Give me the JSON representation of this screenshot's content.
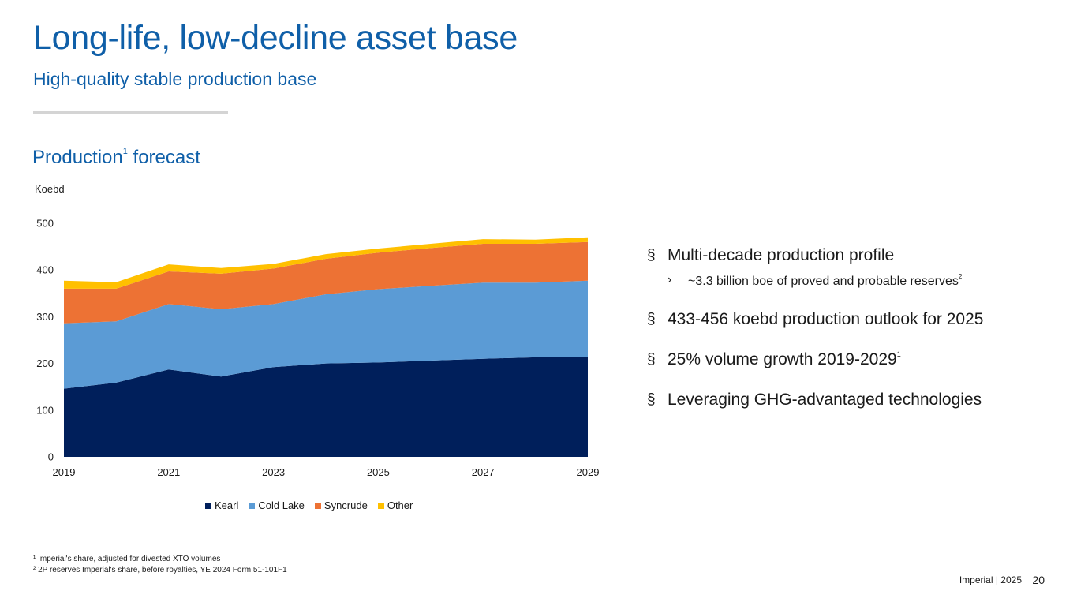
{
  "header": {
    "title": "Long-life, low-decline asset base",
    "subtitle": "High-quality stable production base"
  },
  "chart_section": {
    "title": "Production",
    "title_sup": "1",
    "title_suffix": " forecast",
    "unit_label": "Koebd"
  },
  "chart_data": {
    "type": "area",
    "stacked": true,
    "x": [
      2019,
      2020,
      2021,
      2022,
      2023,
      2024,
      2025,
      2026,
      2027,
      2028,
      2029
    ],
    "x_tick_labels": [
      "2019",
      "2021",
      "2023",
      "2025",
      "2027",
      "2029"
    ],
    "ylim": [
      0,
      500
    ],
    "y_ticks": [
      0,
      100,
      200,
      300,
      400,
      500
    ],
    "ylabel": "Koebd",
    "grid": false,
    "legend_position": "bottom",
    "series": [
      {
        "name": "Kearl",
        "color": "#001f5b",
        "values": [
          146,
          159,
          187,
          172,
          192,
          200,
          202,
          206,
          210,
          213,
          213
        ]
      },
      {
        "name": "Cold Lake",
        "color": "#5b9bd5",
        "values": [
          140,
          131,
          140,
          144,
          135,
          148,
          157,
          160,
          163,
          160,
          164
        ]
      },
      {
        "name": "Syncrude",
        "color": "#ed7234",
        "values": [
          74,
          70,
          70,
          76,
          76,
          76,
          78,
          81,
          83,
          83,
          83
        ]
      },
      {
        "name": "Other",
        "color": "#ffc000",
        "values": [
          17,
          14,
          15,
          12,
          10,
          10,
          9,
          9,
          10,
          9,
          10
        ]
      }
    ]
  },
  "bullets": {
    "b1": "Multi-decade production profile",
    "b1_sub": "~3.3 billion boe of proved and probable reserves",
    "b1_sub_sup": "2",
    "b2": "433-456 koebd production outlook for 2025",
    "b3": "25% volume growth 2019-2029",
    "b3_sup": "1",
    "b4": "Leveraging GHG-advantaged technologies",
    "mark": "§",
    "sub_mark": "›"
  },
  "footnotes": {
    "f1": "¹ Imperial's share, adjusted for divested XTO volumes",
    "f2": "² 2P reserves Imperial's share, before royalties, YE 2024 Form 51-101F1"
  },
  "footer": {
    "text": "Imperial  |  2025",
    "page": "20"
  }
}
